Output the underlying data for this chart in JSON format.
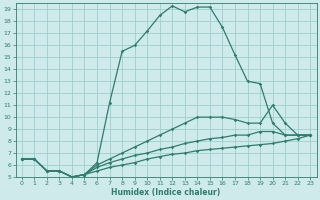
{
  "xlabel": "Humidex (Indice chaleur)",
  "bg_color": "#ceeaea",
  "grid_color": "#9ecece",
  "line_color": "#2e7d6e",
  "xlim": [
    -0.5,
    23.5
  ],
  "ylim": [
    5,
    19.5
  ],
  "yticks": [
    5,
    6,
    7,
    8,
    9,
    10,
    11,
    12,
    13,
    14,
    15,
    16,
    17,
    18,
    19
  ],
  "xticks": [
    0,
    1,
    2,
    3,
    4,
    5,
    6,
    7,
    8,
    9,
    10,
    11,
    12,
    13,
    14,
    15,
    16,
    17,
    18,
    19,
    20,
    21,
    22,
    23
  ],
  "lines": [
    {
      "x": [
        0,
        1,
        2,
        3,
        4,
        5,
        6,
        7,
        8,
        9,
        10,
        11,
        12,
        13,
        14,
        15,
        16,
        17,
        18,
        19,
        20,
        21,
        22,
        23
      ],
      "y": [
        6.5,
        6.5,
        5.5,
        5.5,
        5.0,
        5.2,
        6.2,
        11.2,
        15.5,
        16.0,
        17.2,
        18.5,
        19.3,
        18.8,
        19.2,
        19.2,
        17.5,
        15.2,
        13.0,
        12.8,
        9.5,
        8.5,
        8.5,
        8.5
      ]
    },
    {
      "x": [
        0,
        1,
        2,
        3,
        4,
        5,
        6,
        7,
        8,
        9,
        10,
        11,
        12,
        13,
        14,
        15,
        16,
        17,
        18,
        19,
        20,
        21,
        22,
        23
      ],
      "y": [
        6.5,
        6.5,
        5.5,
        5.5,
        5.0,
        5.2,
        6.0,
        6.5,
        7.0,
        7.5,
        8.0,
        8.5,
        9.0,
        9.5,
        10.0,
        10.0,
        10.0,
        9.8,
        9.5,
        9.5,
        11.0,
        9.5,
        8.5,
        8.5
      ]
    },
    {
      "x": [
        0,
        1,
        2,
        3,
        4,
        5,
        6,
        7,
        8,
        9,
        10,
        11,
        12,
        13,
        14,
        15,
        16,
        17,
        18,
        19,
        20,
        21,
        22,
        23
      ],
      "y": [
        6.5,
        6.5,
        5.5,
        5.5,
        5.0,
        5.2,
        5.8,
        6.2,
        6.5,
        6.8,
        7.0,
        7.3,
        7.5,
        7.8,
        8.0,
        8.2,
        8.3,
        8.5,
        8.5,
        8.8,
        8.8,
        8.5,
        8.5,
        8.5
      ]
    },
    {
      "x": [
        0,
        1,
        2,
        3,
        4,
        5,
        6,
        7,
        8,
        9,
        10,
        11,
        12,
        13,
        14,
        15,
        16,
        17,
        18,
        19,
        20,
        21,
        22,
        23
      ],
      "y": [
        6.5,
        6.5,
        5.5,
        5.5,
        5.0,
        5.2,
        5.5,
        5.8,
        6.0,
        6.2,
        6.5,
        6.7,
        6.9,
        7.0,
        7.2,
        7.3,
        7.4,
        7.5,
        7.6,
        7.7,
        7.8,
        8.0,
        8.2,
        8.5
      ]
    }
  ]
}
